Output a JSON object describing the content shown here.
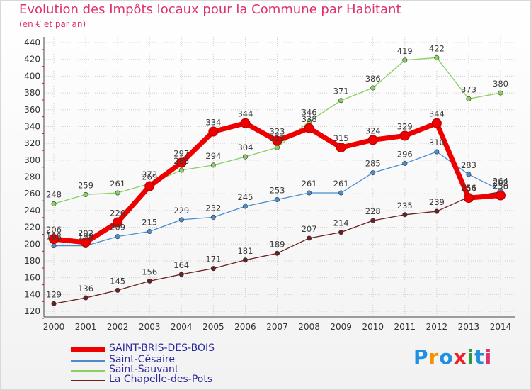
{
  "header": {
    "title": "Evolution des Impôts locaux pour la Commune par Habitant",
    "subtitle": "(en € et par an)"
  },
  "brand": {
    "name": "Proxiti",
    "colors": [
      "#1f8fe0",
      "#f29400",
      "#1f8fe0",
      "#e8222a",
      "#2c9a3a",
      "#1f8fe0",
      "#e0306e"
    ]
  },
  "chart_data": {
    "type": "line",
    "title": "Evolution des Impôts locaux pour la Commune par Habitant",
    "subtitle": "(en € et par an)",
    "xlabel": "",
    "ylabel": "",
    "x": [
      "2000",
      "2001",
      "2002",
      "2003",
      "2004",
      "2005",
      "2006",
      "2007",
      "2008",
      "2009",
      "2010",
      "2011",
      "2012",
      "2013",
      "2014"
    ],
    "yticks": [
      120,
      140,
      160,
      180,
      200,
      220,
      240,
      260,
      280,
      300,
      320,
      340,
      360,
      380,
      400,
      420,
      440
    ],
    "ylim": [
      120,
      440
    ],
    "grid": true,
    "legend_position": "bottom-left",
    "series": [
      {
        "name": "SAINT-BRIS-DES-BOIS",
        "color": "#ee0000",
        "values": [
          206,
          202,
          226,
          269,
          297,
          334,
          344,
          323,
          338,
          315,
          324,
          329,
          344,
          255,
          258
        ],
        "labels": [
          "206",
          "202",
          "226",
          "269",
          "297",
          "334",
          "344",
          "323",
          "338",
          "315",
          "324",
          "329",
          "344",
          "255",
          "258"
        ]
      },
      {
        "name": "Saint-Césaire",
        "color": "#4a8ed0",
        "values": [
          198,
          198,
          209,
          215,
          229,
          232,
          245,
          253,
          261,
          261,
          285,
          296,
          310,
          283,
          264
        ],
        "labels": [
          "198",
          "198",
          "209",
          "215",
          "229",
          "232",
          "245",
          "253",
          "261",
          "261",
          "285",
          "296",
          "310",
          "283",
          "264"
        ]
      },
      {
        "name": "Saint-Sauvant",
        "color": "#88d060",
        "values": [
          248,
          259,
          261,
          272,
          288,
          294,
          304,
          315,
          346,
          371,
          386,
          419,
          422,
          373,
          380
        ],
        "labels": [
          "248",
          "259",
          "261",
          "272",
          "288",
          "294",
          "304",
          "315",
          "346",
          "371",
          "386",
          "419",
          "422",
          "373",
          "380"
        ]
      },
      {
        "name": "La Chapelle-des-Pots",
        "color": "#6a2020",
        "values": [
          129,
          136,
          145,
          156,
          164,
          171,
          181,
          189,
          207,
          214,
          228,
          235,
          239,
          256,
          262
        ],
        "labels": [
          "129",
          "136",
          "145",
          "156",
          "164",
          "171",
          "181",
          "189",
          "207",
          "214",
          "228",
          "235",
          "239",
          "256",
          "262"
        ]
      }
    ]
  }
}
